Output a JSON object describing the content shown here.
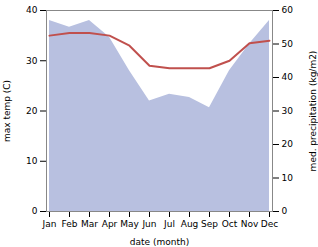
{
  "chart_data": {
    "type": "line",
    "categories": [
      "Jan",
      "Feb",
      "Mar",
      "Apr",
      "May",
      "Jun",
      "Jul",
      "Aug",
      "Sep",
      "Oct",
      "Nov",
      "Dec"
    ],
    "xlabel": "date (month)",
    "ylabel": "max temp (C)",
    "y2label": "med. precipitation (kg/m2)",
    "ylim": [
      0,
      40
    ],
    "yticks": [
      0,
      10,
      20,
      30,
      40
    ],
    "y2lim": [
      0,
      60
    ],
    "y2ticks": [
      0,
      10,
      20,
      30,
      40,
      50,
      60
    ],
    "series": [
      {
        "type": "area",
        "axis": "y2",
        "color": "#b8c0e0",
        "values": [
          57,
          55,
          57,
          52,
          42,
          33,
          35,
          34,
          31,
          42,
          50,
          57
        ]
      },
      {
        "type": "line",
        "color": "#c0504d",
        "values": [
          35,
          35.5,
          35.5,
          35,
          33,
          29,
          28.5,
          28.5,
          28.5,
          30,
          33.5,
          34
        ]
      }
    ]
  }
}
